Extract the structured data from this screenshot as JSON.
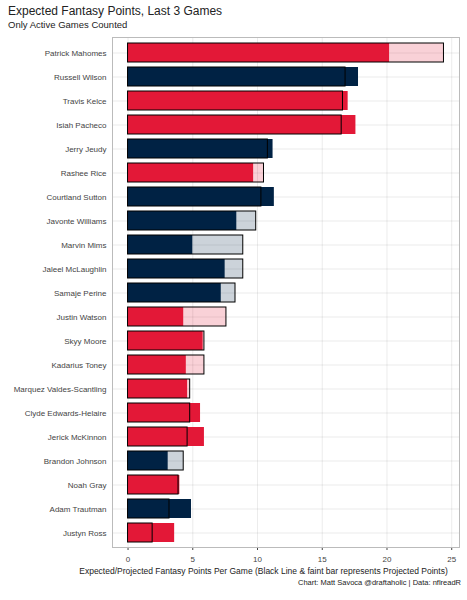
{
  "chart_data": {
    "type": "bar",
    "orientation": "horizontal",
    "title": "Expected Fantasy Points, Last 3 Games",
    "subtitle": "Only Active Games Counted",
    "x_label": "Expected/Projected Fantasy Points Per Game (Black Line & faint bar represents Projected Points)",
    "caption": "Chart: Matt Savoca @draftaholic | Data: nflreadR",
    "categories": [
      "Patrick Mahomes",
      "Russell Wilson",
      "Travis Kelce",
      "Isiah Pacheco",
      "Jerry Jeudy",
      "Rashee Rice",
      "Courtland Sutton",
      "Javonte Williams",
      "Marvin Mims",
      "Jaleel McLaughlin",
      "Samaje Perine",
      "Justin Watson",
      "Skyy Moore",
      "Kadarius Toney",
      "Marquez Valdes-Scantling",
      "Clyde Edwards-Helaire",
      "Jerick McKinnon",
      "Brandon Johnson",
      "Noah Gray",
      "Adam Trautman",
      "Justyn Ross"
    ],
    "values": [
      20.2,
      17.8,
      17.0,
      17.6,
      11.2,
      9.7,
      11.3,
      8.4,
      5.0,
      7.5,
      7.2,
      4.3,
      5.8,
      4.5,
      4.6,
      5.6,
      5.9,
      3.1,
      4.0,
      4.9,
      3.6
    ],
    "projected": [
      24.4,
      16.8,
      16.6,
      16.5,
      10.8,
      10.5,
      10.3,
      9.9,
      8.9,
      8.9,
      8.3,
      7.6,
      5.9,
      5.9,
      4.8,
      4.8,
      4.6,
      4.3,
      3.9,
      3.2,
      1.9
    ],
    "colors": [
      "#E31837",
      "#002244",
      "#E31837",
      "#E31837",
      "#002244",
      "#E31837",
      "#002244",
      "#002244",
      "#002244",
      "#002244",
      "#002244",
      "#E31837",
      "#E31837",
      "#E31837",
      "#E31837",
      "#E31837",
      "#E31837",
      "#002244",
      "#E31837",
      "#002244",
      "#E31837"
    ],
    "xlim": [
      -1.2,
      25.6
    ],
    "xticks": [
      0,
      5,
      10,
      15,
      20,
      25
    ],
    "grid": true
  }
}
